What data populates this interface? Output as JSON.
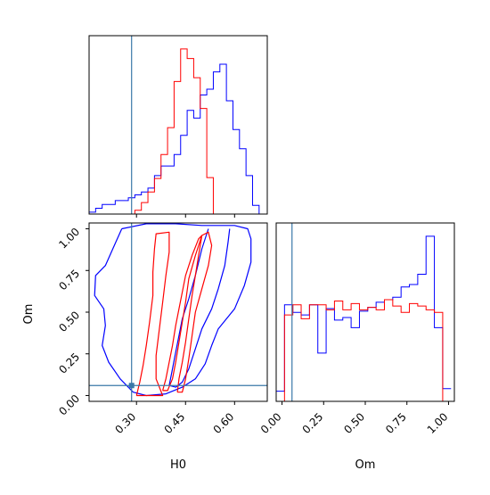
{
  "chart_data": {
    "type": "corner",
    "parameters": [
      "H0",
      "Om"
    ],
    "axis_labels": {
      "x_bottom_left": "H0",
      "x_bottom_right": "Om",
      "y_left": "Om"
    },
    "truth": {
      "H0": 0.285,
      "Om": 0.06
    },
    "colors": {
      "series_a": "#0000ff",
      "series_b": "#ff0000",
      "truth": "#3a78a8"
    },
    "ticks": {
      "H0": {
        "values": [
          0.3,
          0.45,
          0.6
        ],
        "labels": [
          "0.30",
          "0.45",
          "0.60"
        ]
      },
      "Om_left": {
        "values": [
          0.0,
          0.25,
          0.5,
          0.75,
          1.0
        ],
        "labels": [
          "0.00",
          "0.25",
          "0.50",
          "0.75",
          "1.00"
        ]
      },
      "Om_bottom": {
        "values": [
          0.0,
          0.25,
          0.5,
          0.75,
          1.0
        ],
        "labels": [
          "0.00",
          "0.25",
          "0.50",
          "0.75",
          "1.00"
        ]
      }
    },
    "ranges": {
      "H0": [
        0.155,
        0.7
      ],
      "Om": [
        -0.035,
        1.035
      ]
    },
    "hist_H0": {
      "edges": [
        0.155,
        0.175,
        0.195,
        0.215,
        0.235,
        0.255,
        0.275,
        0.295,
        0.315,
        0.335,
        0.355,
        0.375,
        0.395,
        0.415,
        0.435,
        0.455,
        0.475,
        0.495,
        0.515,
        0.535,
        0.555,
        0.575,
        0.595,
        0.615,
        0.635,
        0.655,
        0.675,
        0.695
      ],
      "series": [
        {
          "color": "series_a",
          "counts": [
            2,
            6,
            10,
            10,
            14,
            14,
            17,
            20,
            23,
            27,
            40,
            50,
            50,
            62,
            82,
            108,
            100,
            124,
            130,
            148,
            156,
            118,
            88,
            68,
            40,
            9,
            0
          ]
        },
        {
          "color": "series_b",
          "counts": [
            0,
            0,
            0,
            0,
            0,
            0,
            0,
            4,
            12,
            23,
            37,
            62,
            90,
            138,
            172,
            162,
            142,
            110,
            38,
            0,
            0,
            0,
            0,
            0,
            0,
            0,
            0
          ]
        }
      ]
    },
    "hist_Om": {
      "edges": [
        -0.035,
        0.015,
        0.065,
        0.115,
        0.165,
        0.215,
        0.265,
        0.315,
        0.365,
        0.415,
        0.465,
        0.515,
        0.565,
        0.615,
        0.665,
        0.715,
        0.765,
        0.815,
        0.865,
        0.915,
        0.965,
        1.015
      ],
      "series": [
        {
          "color": "series_a",
          "counts": [
            8,
            76,
            70,
            68,
            76,
            38,
            73,
            64,
            66,
            58,
            71,
            74,
            78,
            80,
            82,
            90,
            92,
            100,
            130,
            58,
            10
          ]
        },
        {
          "color": "series_b",
          "counts": [
            0,
            68,
            76,
            65,
            76,
            76,
            72,
            79,
            72,
            77,
            72,
            74,
            72,
            80,
            75,
            70,
            77,
            75,
            72,
            70,
            0
          ]
        }
      ]
    },
    "contours_2d": [
      {
        "color": "series_a",
        "points": [
          [
            0.255,
            1.0
          ],
          [
            0.232,
            0.9
          ],
          [
            0.205,
            0.78
          ],
          [
            0.175,
            0.72
          ],
          [
            0.172,
            0.6
          ],
          [
            0.2,
            0.52
          ],
          [
            0.205,
            0.42
          ],
          [
            0.195,
            0.3
          ],
          [
            0.215,
            0.2
          ],
          [
            0.25,
            0.1
          ],
          [
            0.29,
            0.02
          ],
          [
            0.33,
            0.0
          ],
          [
            0.39,
            0.01
          ],
          [
            0.44,
            0.05
          ],
          [
            0.48,
            0.1
          ],
          [
            0.51,
            0.19
          ],
          [
            0.53,
            0.3
          ],
          [
            0.55,
            0.4
          ],
          [
            0.6,
            0.52
          ],
          [
            0.63,
            0.66
          ],
          [
            0.65,
            0.8
          ],
          [
            0.65,
            0.94
          ],
          [
            0.64,
            1.0
          ],
          [
            0.6,
            1.02
          ],
          [
            0.5,
            1.02
          ],
          [
            0.42,
            1.03
          ],
          [
            0.33,
            1.03
          ],
          [
            0.255,
            1.0
          ]
        ]
      },
      {
        "color": "series_a",
        "points": [
          [
            0.52,
            1.0
          ],
          [
            0.5,
            0.88
          ],
          [
            0.48,
            0.72
          ],
          [
            0.46,
            0.58
          ],
          [
            0.44,
            0.46
          ],
          [
            0.43,
            0.36
          ],
          [
            0.42,
            0.26
          ],
          [
            0.41,
            0.16
          ],
          [
            0.4,
            0.06
          ],
          [
            0.42,
            0.05
          ],
          [
            0.44,
            0.08
          ],
          [
            0.46,
            0.16
          ],
          [
            0.48,
            0.28
          ],
          [
            0.5,
            0.4
          ],
          [
            0.53,
            0.52
          ],
          [
            0.55,
            0.64
          ],
          [
            0.57,
            0.78
          ],
          [
            0.58,
            0.92
          ],
          [
            0.585,
            1.0
          ]
        ]
      },
      {
        "color": "series_b",
        "points": [
          [
            0.3,
            0.0
          ],
          [
            0.31,
            0.08
          ],
          [
            0.32,
            0.18
          ],
          [
            0.33,
            0.3
          ],
          [
            0.34,
            0.44
          ],
          [
            0.35,
            0.6
          ],
          [
            0.35,
            0.74
          ],
          [
            0.355,
            0.88
          ],
          [
            0.36,
            0.97
          ],
          [
            0.4,
            0.98
          ],
          [
            0.4,
            0.86
          ],
          [
            0.39,
            0.72
          ],
          [
            0.38,
            0.56
          ],
          [
            0.37,
            0.4
          ],
          [
            0.36,
            0.24
          ],
          [
            0.36,
            0.1
          ],
          [
            0.38,
            0.0
          ],
          [
            0.3,
            0.0
          ]
        ]
      },
      {
        "color": "series_b",
        "points": [
          [
            0.425,
            0.02
          ],
          [
            0.43,
            0.1
          ],
          [
            0.44,
            0.2
          ],
          [
            0.45,
            0.32
          ],
          [
            0.46,
            0.46
          ],
          [
            0.47,
            0.6
          ],
          [
            0.48,
            0.72
          ],
          [
            0.49,
            0.84
          ],
          [
            0.5,
            0.96
          ],
          [
            0.52,
            0.98
          ],
          [
            0.53,
            0.9
          ],
          [
            0.52,
            0.78
          ],
          [
            0.5,
            0.64
          ],
          [
            0.48,
            0.5
          ],
          [
            0.47,
            0.36
          ],
          [
            0.46,
            0.22
          ],
          [
            0.45,
            0.1
          ],
          [
            0.44,
            0.02
          ],
          [
            0.425,
            0.02
          ]
        ]
      },
      {
        "color": "series_b",
        "points": [
          [
            0.38,
            0.03
          ],
          [
            0.39,
            0.1
          ],
          [
            0.4,
            0.2
          ],
          [
            0.41,
            0.3
          ],
          [
            0.42,
            0.42
          ],
          [
            0.43,
            0.52
          ],
          [
            0.44,
            0.62
          ],
          [
            0.45,
            0.72
          ],
          [
            0.47,
            0.84
          ],
          [
            0.49,
            0.94
          ],
          [
            0.5,
            0.96
          ],
          [
            0.48,
            0.84
          ],
          [
            0.46,
            0.7
          ],
          [
            0.45,
            0.56
          ],
          [
            0.44,
            0.44
          ],
          [
            0.43,
            0.32
          ],
          [
            0.42,
            0.2
          ],
          [
            0.41,
            0.1
          ],
          [
            0.395,
            0.03
          ],
          [
            0.38,
            0.03
          ]
        ]
      }
    ]
  }
}
